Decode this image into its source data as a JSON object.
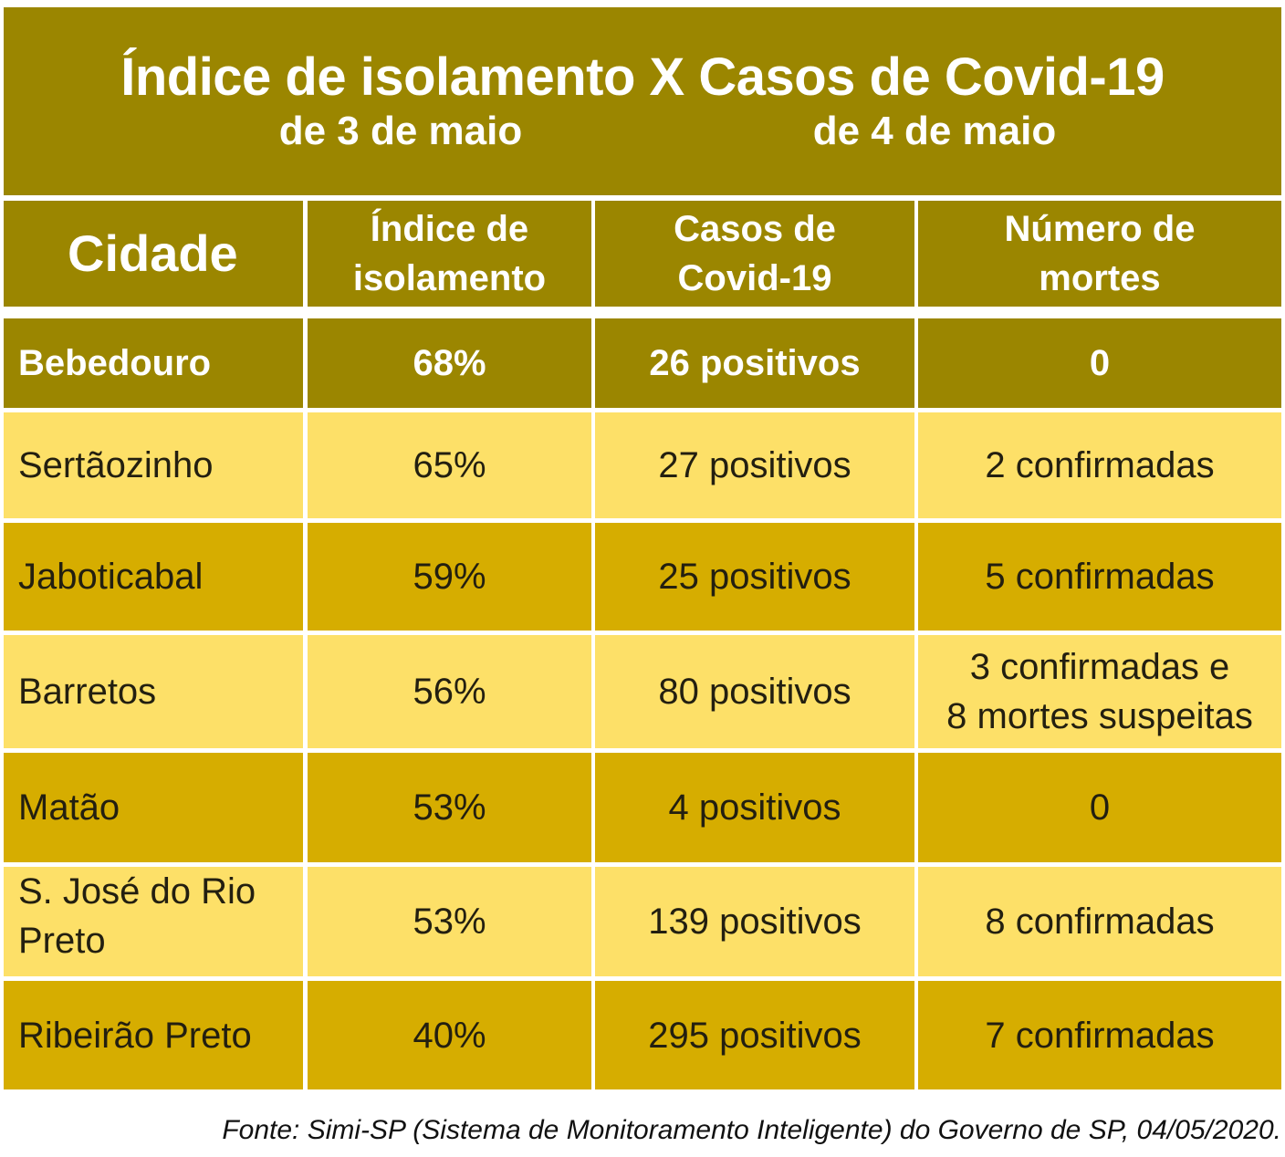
{
  "title": {
    "main": "Índice de isolamento X Casos de Covid-19",
    "sub_left": "de 3 de maio",
    "sub_right": "de 4 de maio"
  },
  "headers": {
    "city": "Cidade",
    "isolation_line1": "Índice de",
    "isolation_line2": "isolamento",
    "cases_line1": "Casos de",
    "cases_line2": "Covid-19",
    "deaths_line1": "Número de",
    "deaths_line2": "mortes"
  },
  "rows": [
    {
      "city": "Bebedouro",
      "isolation": "68%",
      "cases": "26 positivos",
      "deaths": "0"
    },
    {
      "city": "Sertãozinho",
      "isolation": "65%",
      "cases": "27 positivos",
      "deaths": "2 confirmadas"
    },
    {
      "city": "Jaboticabal",
      "isolation": "59%",
      "cases": "25 positivos",
      "deaths": "5 confirmadas"
    },
    {
      "city": "Barretos",
      "isolation": "56%",
      "cases": "80 positivos",
      "deaths_line1": "3 confirmadas e",
      "deaths_line2": "8 mortes suspeitas"
    },
    {
      "city": "Matão",
      "isolation": "53%",
      "cases": "4 positivos",
      "deaths": "0"
    },
    {
      "city_line1": "S. José do Rio",
      "city_line2": "Preto",
      "isolation": "53%",
      "cases": "139 positivos",
      "deaths": "8 confirmadas"
    },
    {
      "city": "Ribeirão Preto",
      "isolation": "40%",
      "cases": "295 positivos",
      "deaths": "7 confirmadas"
    }
  ],
  "source": "Fonte: Simi-SP (Sistema de Monitoramento Inteligente) do Governo de SP, 04/05/2020.",
  "colors": {
    "header_olive": "#9b8600",
    "row_light": "#fde068",
    "row_gold": "#d6ad00"
  }
}
